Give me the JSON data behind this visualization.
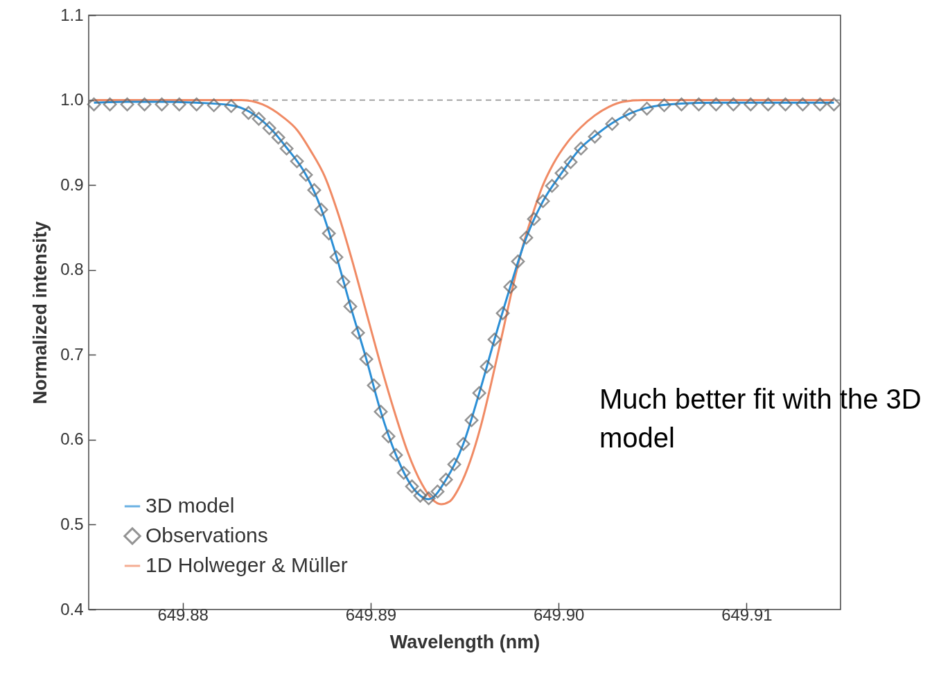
{
  "chart_data": {
    "type": "line",
    "xlabel": "Wavelength (nm)",
    "ylabel": "Normalized intensity",
    "xlim": [
      649.875,
      649.915
    ],
    "xticks": [
      649.88,
      649.89,
      {
        "value": 649.9,
        "label": "649.90"
      },
      649.91
    ],
    "ylim": [
      0.4,
      1.1
    ],
    "yticks": [
      0.4,
      0.5,
      0.6,
      0.7,
      0.8,
      0.9,
      {
        "value": 1,
        "label": "1.0"
      },
      1.1
    ],
    "grid": false,
    "legend": "bottom left",
    "ref_lines": [
      {
        "axis": "y",
        "value": 1,
        "color": "#888888",
        "line_style": "dashed"
      }
    ],
    "annotations": [
      "Much better fit with the 3D model"
    ],
    "series": [
      {
        "name": "3D model",
        "color": "#2b8fd6",
        "x": [
          649.87528,
          649.87705,
          649.87889,
          649.88074,
          649.88258,
          649.8835,
          649.88461,
          649.88553,
          649.88656,
          649.88737,
          649.88818,
          649.88892,
          649.88977,
          649.89054,
          649.89135,
          649.8922,
          649.89309,
          649.89401,
          649.89493,
          649.89578,
          649.89659,
          649.89743,
          649.89828,
          649.89917,
          649.90016,
          649.90119,
          649.90193,
          649.90285,
          649.90377,
          649.9047,
          649.90654,
          649.90838,
          649.91022,
          649.91207,
          649.91465
        ],
        "values": [
          0.997,
          0.998,
          0.998,
          0.997,
          0.994,
          0.987,
          0.968,
          0.944,
          0.912,
          0.872,
          0.816,
          0.758,
          0.695,
          0.633,
          0.582,
          0.545,
          0.53,
          0.553,
          0.595,
          0.655,
          0.718,
          0.78,
          0.838,
          0.881,
          0.914,
          0.944,
          0.958,
          0.973,
          0.984,
          0.991,
          0.996,
          0.997,
          0.997,
          0.997,
          0.997
        ]
      },
      {
        "name": "Observations",
        "type": "scatter",
        "marker": "diamond",
        "color": "#666666",
        "x": [
          649.87528,
          649.87613,
          649.87705,
          649.87797,
          649.87889,
          649.87982,
          649.88074,
          649.88166,
          649.88258,
          649.8835,
          649.88405,
          649.88461,
          649.88509,
          649.88553,
          649.88608,
          649.88656,
          649.887,
          649.88737,
          649.88778,
          649.88818,
          649.88855,
          649.88892,
          649.88933,
          649.88977,
          649.89017,
          649.89054,
          649.89095,
          649.89135,
          649.89176,
          649.8922,
          649.89264,
          649.89309,
          649.89356,
          649.89401,
          649.89445,
          649.89493,
          649.89537,
          649.89578,
          649.89618,
          649.89659,
          649.89703,
          649.89743,
          649.89784,
          649.89828,
          649.89869,
          649.89917,
          649.89965,
          649.90016,
          649.90064,
          649.90119,
          649.90193,
          649.90285,
          649.90377,
          649.9047,
          649.90562,
          649.90654,
          649.90746,
          649.90838,
          649.9093,
          649.91022,
          649.91115,
          649.91207,
          649.91299,
          649.91391,
          649.91465
        ],
        "values": [
          0.995,
          0.995,
          0.995,
          0.995,
          0.995,
          0.995,
          0.995,
          0.994,
          0.993,
          0.985,
          0.978,
          0.967,
          0.956,
          0.943,
          0.928,
          0.912,
          0.894,
          0.871,
          0.843,
          0.815,
          0.786,
          0.757,
          0.726,
          0.695,
          0.664,
          0.633,
          0.604,
          0.582,
          0.561,
          0.545,
          0.534,
          0.531,
          0.539,
          0.553,
          0.571,
          0.595,
          0.623,
          0.655,
          0.686,
          0.718,
          0.749,
          0.78,
          0.81,
          0.838,
          0.86,
          0.881,
          0.899,
          0.914,
          0.927,
          0.943,
          0.957,
          0.972,
          0.983,
          0.99,
          0.994,
          0.995,
          0.995,
          0.995,
          0.995,
          0.995,
          0.995,
          0.995,
          0.995,
          0.995,
          0.995
        ]
      },
      {
        "name": "1D Holweger & Müller",
        "color": "#f08a64",
        "x": [
          649.87528,
          649.88313,
          649.88424,
          649.88534,
          649.88608,
          649.88682,
          649.88756,
          649.88829,
          649.88903,
          649.88977,
          649.89051,
          649.89124,
          649.89198,
          649.89272,
          649.89327,
          649.89375,
          649.89419,
          649.89474,
          649.8953,
          649.89585,
          649.8964,
          649.89696,
          649.89751,
          649.89806,
          649.89861,
          649.89917,
          649.89972,
          649.90046,
          649.90119,
          649.90193,
          649.90267,
          649.90341,
          649.90451,
          649.90709,
          649.91465
        ],
        "values": [
          1.0,
          1.0,
          0.995,
          0.98,
          0.965,
          0.94,
          0.91,
          0.865,
          0.81,
          0.75,
          0.69,
          0.635,
          0.585,
          0.548,
          0.53,
          0.524,
          0.527,
          0.545,
          0.575,
          0.615,
          0.665,
          0.72,
          0.775,
          0.825,
          0.865,
          0.9,
          0.925,
          0.95,
          0.968,
          0.982,
          0.992,
          0.998,
          1.0,
          1.0,
          1.0
        ]
      }
    ]
  }
}
